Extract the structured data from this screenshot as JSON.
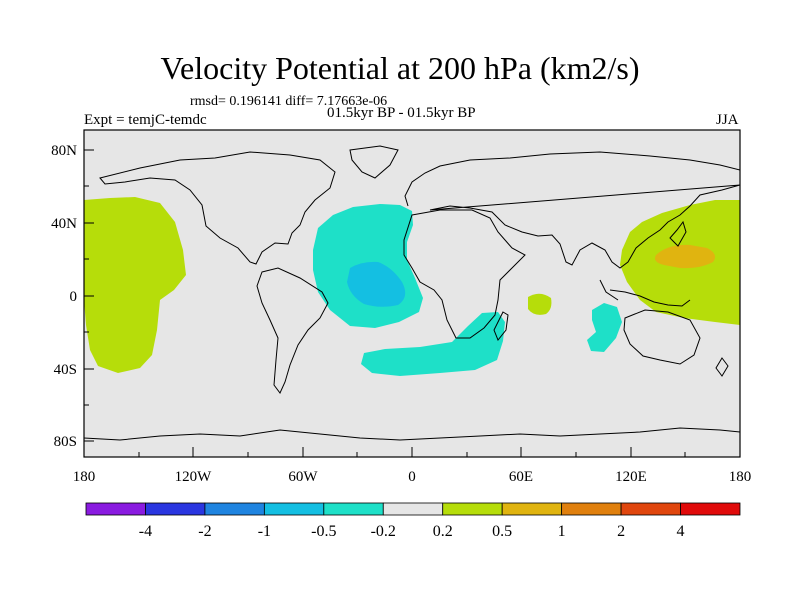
{
  "title": "Velocity Potential at 200 hPa (km2/s)",
  "stats": "rmsd= 0.196141 diff= 7.17663e-06",
  "expt": "Expt = temjC-temdc",
  "period": "01.5kyr BP - 01.5kyr BP",
  "season": "JJA",
  "lat_ticks": [
    "80N",
    "40N",
    "0",
    "40S",
    "80S"
  ],
  "lon_ticks": [
    "180",
    "120W",
    "60W",
    "0",
    "60E",
    "120E",
    "180"
  ],
  "colorbar": {
    "labels": [
      "-4",
      "-2",
      "-1",
      "-0.5",
      "-0.2",
      "0.2",
      "0.5",
      "1",
      "2",
      "4"
    ],
    "colors": [
      "#8a1be0",
      "#2a36e0",
      "#1f84e0",
      "#14bfe2",
      "#1ee0c8",
      "#e6e6e6",
      "#b6dd0a",
      "#e0b410",
      "#e0800e",
      "#e0460e",
      "#e00a0a"
    ]
  },
  "map_colors": {
    "background": "#e6e6e6",
    "positive_weak": "#b6dd0a",
    "positive_mid": "#e0b410",
    "negative_weak": "#1ee0c8",
    "negative_mid": "#14bfe2"
  }
}
